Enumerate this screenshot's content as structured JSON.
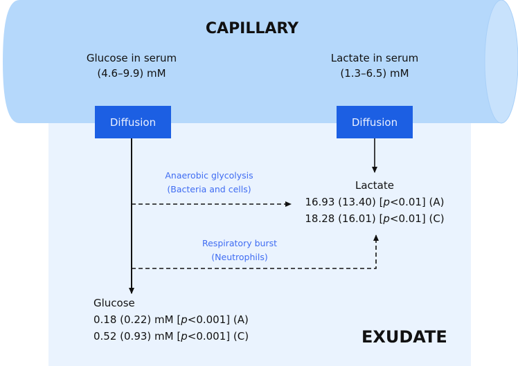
{
  "capillary": {
    "title": "CAPILLARY",
    "glucose_serum": {
      "label": "Glucose in serum",
      "range": "(4.6–9.9) mM"
    },
    "lactate_serum": {
      "label": "Lactate in serum",
      "range": "(1.3–6.5) mM"
    },
    "diffusion_label": "Diffusion"
  },
  "exudate": {
    "title": "EXUDATE",
    "process_anaerobic": {
      "line1": "Anaerobic glycolysis",
      "line2": "(Bacteria and cells)"
    },
    "process_respiratory": {
      "line1": "Respiratory burst",
      "line2": "(Neutrophils)"
    },
    "lactate": {
      "label": "Lactate",
      "rows": [
        {
          "pre": "16.93 (13.40) [",
          "p": "p",
          "post": "<0.01] (A)"
        },
        {
          "pre": "18.28 (16.01) [",
          "p": "p",
          "post": "<0.01] (C)"
        }
      ]
    },
    "glucose": {
      "label": "Glucose",
      "rows": [
        {
          "pre": "0.18 (0.22) mM [",
          "p": "p",
          "post": "<0.001] (A)"
        },
        {
          "pre": "0.52 (0.93) mM [",
          "p": "p",
          "post": "<0.001] (C)"
        }
      ]
    }
  },
  "colors": {
    "capillary": "#b5d8fb",
    "exudate": "#eaf3fe",
    "diffusion": "#1c5fe3",
    "process_text": "#3f6cf2"
  }
}
